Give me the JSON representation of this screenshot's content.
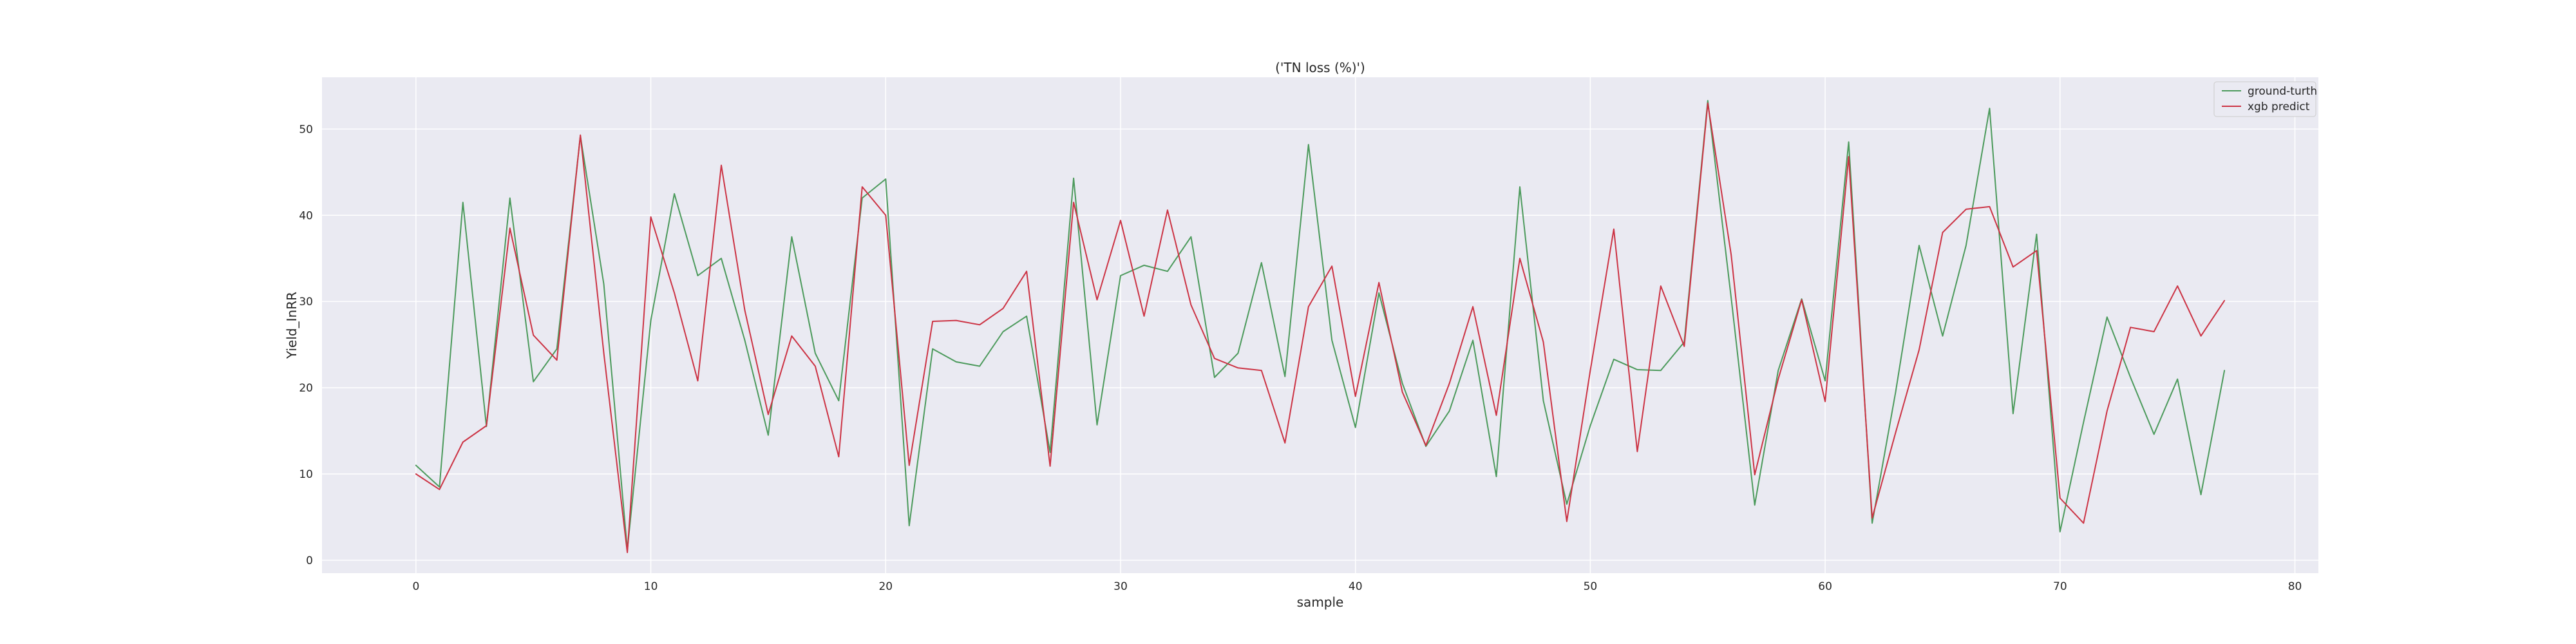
{
  "chart_data": {
    "type": "line",
    "title": "('TN loss (%)')",
    "xlabel": "sample",
    "ylabel": "Yield_InRR",
    "xlim": [
      -4,
      81
    ],
    "ylim": [
      -1.5,
      56
    ],
    "xticks": [
      0,
      10,
      20,
      30,
      40,
      50,
      60,
      70,
      80
    ],
    "yticks": [
      0,
      10,
      20,
      30,
      40,
      50
    ],
    "grid": true,
    "legend_position": "top-right",
    "x": [
      0,
      1,
      2,
      3,
      4,
      5,
      6,
      7,
      8,
      9,
      10,
      11,
      12,
      13,
      14,
      15,
      16,
      17,
      18,
      19,
      20,
      21,
      22,
      23,
      24,
      25,
      26,
      27,
      28,
      29,
      30,
      31,
      32,
      33,
      34,
      35,
      36,
      37,
      38,
      39,
      40,
      41,
      42,
      43,
      44,
      45,
      46,
      47,
      48,
      49,
      50,
      51,
      52,
      53,
      54,
      55,
      56,
      57,
      58,
      59,
      60,
      61,
      62,
      63,
      64,
      65,
      66,
      67,
      68,
      69,
      70,
      71,
      72,
      73,
      74,
      75,
      76,
      77
    ],
    "series": [
      {
        "name": "ground-turth",
        "color": "#4c9a5c",
        "values": [
          11.0,
          8.5,
          41.5,
          15.5,
          42.0,
          20.7,
          24.5,
          49.2,
          32.0,
          1.2,
          27.8,
          42.5,
          33.0,
          35.0,
          25.5,
          14.5,
          37.5,
          24.0,
          18.5,
          42.0,
          44.2,
          4.0,
          24.5,
          23.0,
          22.5,
          26.5,
          28.3,
          12.5,
          44.3,
          15.7,
          33.0,
          34.2,
          33.5,
          37.5,
          21.2,
          24.0,
          34.5,
          21.3,
          48.2,
          25.5,
          15.4,
          31.0,
          20.5,
          13.2,
          17.3,
          25.5,
          9.7,
          43.3,
          18.5,
          6.5,
          15.6,
          23.3,
          22.1,
          22.0,
          25.3,
          53.3,
          30.4,
          6.4,
          22.0,
          30.3,
          20.8,
          48.5,
          4.3,
          19.5,
          36.5,
          26.0,
          36.5,
          52.4,
          17.0,
          37.8,
          3.3,
          16.0,
          28.2,
          21.2,
          14.6,
          21.0,
          7.6,
          22.0
        ]
      },
      {
        "name": "xgb predict",
        "color": "#cc3344",
        "values": [
          10.0,
          8.2,
          13.7,
          15.6,
          38.5,
          26.1,
          23.2,
          49.3,
          24.0,
          0.9,
          39.8,
          31.0,
          20.8,
          45.8,
          29.0,
          16.9,
          26.0,
          22.5,
          12.0,
          43.3,
          40.0,
          11.0,
          27.7,
          27.8,
          27.3,
          29.2,
          33.5,
          10.9,
          41.5,
          30.2,
          39.4,
          28.3,
          40.6,
          29.6,
          23.4,
          22.3,
          22.0,
          13.6,
          29.4,
          34.1,
          19.0,
          32.2,
          19.5,
          13.3,
          20.5,
          29.4,
          16.8,
          35.0,
          25.3,
          4.5,
          22.0,
          38.4,
          12.6,
          31.8,
          24.8,
          53.0,
          35.4,
          9.9,
          21.0,
          30.2,
          18.4,
          46.8,
          4.9,
          14.8,
          24.4,
          38.0,
          40.7,
          41.0,
          34.0,
          35.9,
          7.2,
          4.3,
          17.3,
          27.0,
          26.5,
          31.8,
          26.0,
          30.1
        ]
      }
    ]
  }
}
